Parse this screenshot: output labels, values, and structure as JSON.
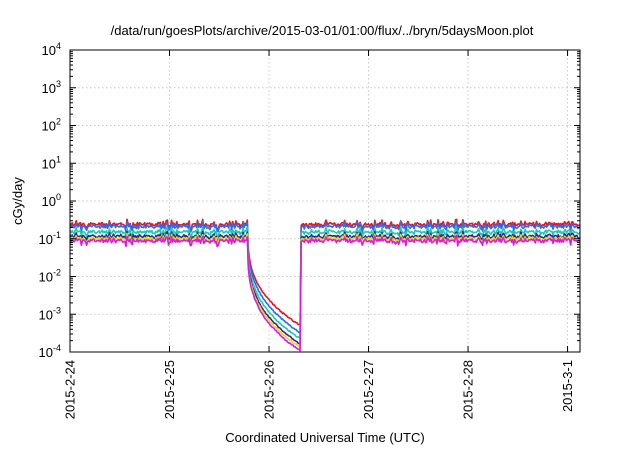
{
  "chart_data": {
    "type": "line",
    "title": "/data/run/goesPlots/archive/2015-03-01/01:00/flux/../bryn/5daysMoon.plot",
    "xlabel": "Coordinated Universal Time (UTC)",
    "ylabel": "cGy/day",
    "yscale": "log",
    "ylim": [
      0.0001,
      10000
    ],
    "xlim": [
      "2015-02-24T00:00",
      "2015-03-01T03:00"
    ],
    "x_ticks": [
      "2015-2-24",
      "2015-2-25",
      "2015-2-26",
      "2015-2-27",
      "2015-2-28",
      "2015-3-1"
    ],
    "y_ticks": [
      {
        "base": "10",
        "exp": "-4",
        "value": 0.0001
      },
      {
        "base": "10",
        "exp": "-3",
        "value": 0.001
      },
      {
        "base": "10",
        "exp": "-2",
        "value": 0.01
      },
      {
        "base": "10",
        "exp": "-1",
        "value": 0.1
      },
      {
        "base": "10",
        "exp": "0",
        "value": 1
      },
      {
        "base": "10",
        "exp": "1",
        "value": 10
      },
      {
        "base": "10",
        "exp": "2",
        "value": 100
      },
      {
        "base": "10",
        "exp": "3",
        "value": 1000
      },
      {
        "base": "10",
        "exp": "4",
        "value": 10000
      }
    ],
    "grid": true,
    "legend": "none",
    "series": [
      {
        "color": "#e8141c",
        "baseline": 0.24,
        "shadow_end": 0.0005
      },
      {
        "color": "#2a6df0",
        "baseline": 0.21,
        "shadow_end": 0.00032
      },
      {
        "color": "#1ec8b4",
        "baseline": 0.15,
        "shadow_end": 0.00022
      },
      {
        "color": "#2a2a8a",
        "baseline": 0.115,
        "shadow_end": 0.00016
      },
      {
        "color": "#e8d81c",
        "baseline": 0.1,
        "shadow_end": 0.00013
      },
      {
        "color": "#d81ce0",
        "baseline": 0.088,
        "shadow_end": 0.000105
      }
    ],
    "shadow_window": {
      "start": "2015-02-25T18:50",
      "end": "2015-02-26T07:40"
    }
  }
}
